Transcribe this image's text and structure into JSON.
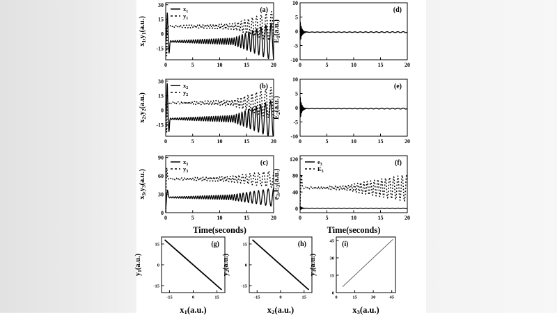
{
  "colors": {
    "line": "#000000",
    "panel_background": "#ffffff",
    "thin_line": "#444444"
  },
  "chart_data": [
    {
      "id": "a",
      "type": "line",
      "panel_label": "(a)",
      "label_corner": "tr",
      "xlim": [
        0,
        20
      ],
      "ylim": [
        -27,
        32
      ],
      "xticks": [
        0,
        5,
        10,
        15,
        20
      ],
      "yticks": [
        -15,
        0,
        15,
        30
      ],
      "xlabel": "",
      "ylabel": "x_1,y_1(a.u.)",
      "grid": false,
      "legend": {
        "pos": "top-left",
        "entries": [
          {
            "label": "x_1",
            "style": "solid"
          },
          {
            "label": "y_1",
            "style": "dashed"
          }
        ]
      },
      "series": [
        {
          "name": "x_1",
          "style": "solid",
          "width": 1.3,
          "signal": {
            "base": -8,
            "rise": 0,
            "period0": 0.42,
            "period1": 1.05,
            "tbreak": 12.5,
            "amp0": 0.5,
            "ampBreak": 3.5,
            "ampEnd": 20,
            "phase": 0,
            "spikes": [
              [
                0.3,
                30,
                0.13
              ],
              [
                0.62,
                -12,
                0.12
              ]
            ]
          }
        },
        {
          "name": "y_1",
          "style": "dashed",
          "width": 1.5,
          "signal": {
            "base": 7.5,
            "rise": 0,
            "period0": 0.5,
            "period1": 1.05,
            "tbreak": 12.5,
            "amp0": 0.6,
            "ampBreak": 3,
            "ampEnd": 16,
            "phase": 3.1,
            "spikes": [
              [
                0.18,
                -30,
                0.1
              ]
            ]
          }
        }
      ]
    },
    {
      "id": "d",
      "type": "line",
      "panel_label": "(d)",
      "label_corner": "tr",
      "xlim": [
        0,
        20
      ],
      "ylim": [
        -10,
        10
      ],
      "xticks": [
        0,
        5,
        10,
        15,
        20
      ],
      "yticks": [
        -10,
        -5,
        0,
        5,
        10
      ],
      "xlabel": "",
      "ylabel": "E_1(a.u.)",
      "grid": false,
      "series": [
        {
          "name": "E_1",
          "style": "solid",
          "width": 1.3,
          "signal": {
            "base": -0.3,
            "rise": 0,
            "period0": 1,
            "period1": 1,
            "tbreak": 10,
            "amp0": 0.06,
            "ampBreak": 0.1,
            "ampEnd": 0.18,
            "phase": 0,
            "damped": [
              4,
              0.3,
              0.18
            ]
          }
        }
      ]
    },
    {
      "id": "b",
      "type": "line",
      "panel_label": "(b)",
      "label_corner": "tr",
      "xlim": [
        0,
        20
      ],
      "ylim": [
        -27,
        32
      ],
      "xticks": [
        0,
        5,
        10,
        15,
        20
      ],
      "yticks": [
        -15,
        0,
        15,
        30
      ],
      "xlabel": "",
      "ylabel": "x_2,y_2(a.u.)",
      "grid": false,
      "legend": {
        "pos": "top-left",
        "entries": [
          {
            "label": "x_2",
            "style": "solid"
          },
          {
            "label": "y_2",
            "style": "dashed"
          }
        ]
      },
      "series": [
        {
          "name": "x_2",
          "style": "solid",
          "width": 1.3,
          "signal": {
            "base": -9,
            "rise": 0,
            "period0": 0.42,
            "period1": 1.05,
            "tbreak": 12.5,
            "amp0": 0.5,
            "ampBreak": 3.5,
            "ampEnd": 20,
            "phase": 0.5,
            "spikes": [
              [
                0.28,
                37,
                0.12
              ],
              [
                0.6,
                -13,
                0.12
              ]
            ]
          }
        },
        {
          "name": "y_2",
          "style": "dashed",
          "width": 1.5,
          "signal": {
            "base": 7.5,
            "rise": 0,
            "period0": 0.5,
            "period1": 1.05,
            "tbreak": 12.5,
            "amp0": 0.6,
            "ampBreak": 3,
            "ampEnd": 17,
            "phase": 3.6,
            "spikes": [
              [
                0.18,
                -30,
                0.1
              ]
            ]
          }
        }
      ]
    },
    {
      "id": "e",
      "type": "line",
      "panel_label": "(e)",
      "label_corner": "tr",
      "xlim": [
        0,
        20
      ],
      "ylim": [
        -10,
        10
      ],
      "xticks": [
        0,
        5,
        10,
        15,
        20
      ],
      "yticks": [
        -10,
        -5,
        0,
        5,
        10
      ],
      "xlabel": "",
      "ylabel": "E_2(a.u.)",
      "grid": false,
      "series": [
        {
          "name": "E_2",
          "style": "solid",
          "width": 1.3,
          "signal": {
            "base": -0.3,
            "rise": 0,
            "period0": 1,
            "period1": 1,
            "tbreak": 10,
            "amp0": 0.06,
            "ampBreak": 0.1,
            "ampEnd": 0.18,
            "phase": 0,
            "damped": [
              4.5,
              0.28,
              0.17
            ]
          }
        }
      ]
    },
    {
      "id": "c",
      "type": "line",
      "panel_label": "(c)",
      "label_corner": "tr",
      "xlim": [
        0,
        20
      ],
      "ylim": [
        0,
        93
      ],
      "xticks": [
        0,
        5,
        10,
        15,
        20
      ],
      "yticks": [
        0,
        30,
        60,
        90
      ],
      "xlabel": "Time(seconds)",
      "ylabel": "x_3,y_3(a.u.)",
      "grid": false,
      "legend": {
        "pos": "top-left",
        "entries": [
          {
            "label": "x_3",
            "style": "solid"
          },
          {
            "label": "y_3",
            "style": "dashed"
          }
        ]
      },
      "series": [
        {
          "name": "x_3",
          "style": "solid",
          "width": 1.3,
          "signal": {
            "base": 25,
            "rise": 0.12,
            "period0": 0.42,
            "period1": 1.05,
            "tbreak": 12,
            "amp0": 0.6,
            "ampBreak": 4,
            "ampEnd": 15,
            "phase": 0,
            "spikes": [
              [
                0.32,
                14,
                0.15
              ]
            ]
          }
        },
        {
          "name": "y_3",
          "style": "dashed",
          "width": 1.5,
          "signal": {
            "base": 55,
            "rise": 0.07,
            "period0": 0.5,
            "period1": 1.05,
            "tbreak": 12,
            "amp0": 0.8,
            "ampBreak": 4.5,
            "ampEnd": 14,
            "phase": 2,
            "spikes": [
              [
                0.2,
                22,
                0.1
              ]
            ]
          }
        }
      ]
    },
    {
      "id": "f",
      "type": "line",
      "panel_label": "(f)",
      "label_corner": "tr",
      "xlim": [
        0,
        20
      ],
      "ylim": [
        -10,
        128
      ],
      "xticks": [
        0,
        5,
        10,
        15,
        20
      ],
      "yticks": [
        0,
        40,
        80,
        120
      ],
      "xlabel": "Time(seconds)",
      "ylabel": "e_3,E_3(a.u.)",
      "grid": false,
      "legend": {
        "pos": "top-left",
        "entries": [
          {
            "label": "e_3",
            "style": "solid"
          },
          {
            "label": "E_3",
            "style": "dashed"
          }
        ]
      },
      "series": [
        {
          "name": "e_3",
          "style": "solid",
          "width": 1.3,
          "signal": {
            "base": 0.8,
            "rise": 0,
            "period0": 1,
            "period1": 1,
            "tbreak": 10,
            "amp0": 0.1,
            "ampBreak": 0.15,
            "ampEnd": 0.2,
            "phase": 0,
            "damped": [
              5,
              0.3,
              0.2
            ]
          }
        },
        {
          "name": "E_3",
          "style": "dashed",
          "width": 1.5,
          "signal": {
            "base": 50,
            "rise": 0.07,
            "period0": 0.5,
            "period1": 0.85,
            "tbreak": 8,
            "amp0": 1.5,
            "ampBreak": 5,
            "ampEnd": 33,
            "phase": 1,
            "spikes": [
              [
                0.25,
                34,
                0.13
              ]
            ]
          }
        }
      ]
    },
    {
      "id": "g",
      "type": "line",
      "panel_label": "(g)",
      "label_corner": "tr",
      "xlim": [
        -20,
        20
      ],
      "ylim": [
        -20,
        20
      ],
      "xticks": [
        -15,
        0,
        15
      ],
      "yticks": [
        -15,
        0,
        15
      ],
      "xlabel": "x_1(a.u.)",
      "ylabel": "y_1(a.u.)",
      "grid": false,
      "series": [
        {
          "name": "y_1 vs x_1",
          "style": "solid",
          "width": 1.8,
          "points": [
            [
              -18,
              18
            ],
            [
              18,
              -18
            ]
          ]
        }
      ]
    },
    {
      "id": "h",
      "type": "line",
      "panel_label": "(h)",
      "label_corner": "tr",
      "xlim": [
        -20,
        20
      ],
      "ylim": [
        -20,
        20
      ],
      "xticks": [
        -15,
        0,
        15
      ],
      "yticks": [
        -15,
        0,
        15
      ],
      "xlabel": "x_2(a.u.)",
      "ylabel": "y_2(a.u.)",
      "grid": false,
      "series": [
        {
          "name": "y_2 vs x_2",
          "style": "solid",
          "width": 1.8,
          "points": [
            [
              -18,
              18
            ],
            [
              18,
              -18
            ]
          ]
        }
      ]
    },
    {
      "id": "i",
      "type": "line",
      "panel_label": "(i)",
      "label_corner": "tl",
      "xlim": [
        0,
        48
      ],
      "ylim": [
        0,
        48
      ],
      "xticks": [
        0,
        15,
        30,
        45
      ],
      "yticks": [
        0,
        15,
        30,
        45
      ],
      "xlabel": "x_3(a.u.)",
      "ylabel": "y_3(a.u.)",
      "grid": false,
      "series": [
        {
          "name": "y_3 vs x_3",
          "style": "thin",
          "width": 0.8,
          "points": [
            [
              5,
              5
            ],
            [
              46,
              46
            ]
          ]
        }
      ]
    }
  ]
}
